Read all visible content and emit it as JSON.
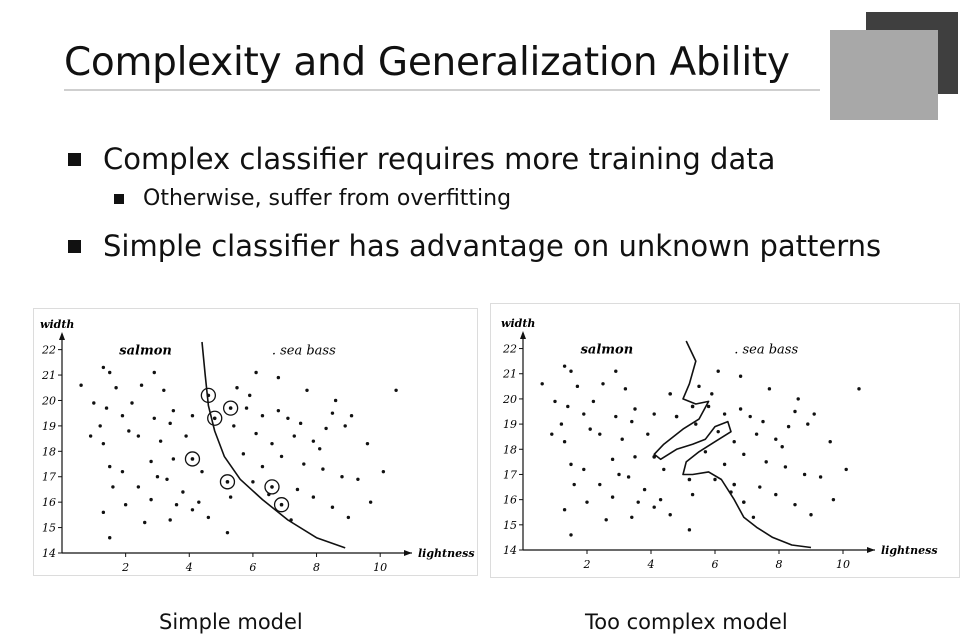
{
  "slide": {
    "title": "Complexity and Generalization Ability",
    "bullets": [
      {
        "text": "Complex classifier requires more training data",
        "sub": [
          "Otherwise, suffer from overfitting"
        ]
      },
      {
        "text": "Simple classifier has advantage on unknown patterns"
      }
    ]
  },
  "chart_data": [
    {
      "type": "scatter",
      "caption": "Simple model",
      "xlabel": "lightness",
      "ylabel": "width",
      "xlim": [
        0,
        11
      ],
      "ylim": [
        14,
        22.3
      ],
      "xticks": [
        2,
        4,
        6,
        8,
        10
      ],
      "yticks": [
        14,
        15,
        16,
        17,
        18,
        19,
        20,
        21,
        22
      ],
      "series": [
        {
          "name": "salmon",
          "points": [
            [
              0.6,
              20.6
            ],
            [
              1.0,
              19.9
            ],
            [
              1.3,
              21.3
            ],
            [
              1.5,
              21.1
            ],
            [
              1.7,
              20.5
            ],
            [
              1.4,
              19.7
            ],
            [
              1.9,
              19.4
            ],
            [
              2.2,
              19.9
            ],
            [
              2.5,
              20.6
            ],
            [
              2.9,
              21.1
            ],
            [
              3.2,
              20.4
            ],
            [
              3.5,
              19.6
            ],
            [
              2.1,
              18.8
            ],
            [
              1.3,
              18.3
            ],
            [
              1.5,
              17.4
            ],
            [
              0.9,
              18.6
            ],
            [
              1.9,
              17.2
            ],
            [
              2.4,
              18.6
            ],
            [
              2.8,
              17.6
            ],
            [
              3.1,
              18.4
            ],
            [
              3.5,
              17.7
            ],
            [
              3.9,
              18.6
            ],
            [
              4.1,
              19.4
            ],
            [
              3.4,
              19.1
            ],
            [
              2.9,
              19.3
            ],
            [
              1.6,
              16.6
            ],
            [
              2.4,
              16.6
            ],
            [
              2.8,
              16.1
            ],
            [
              3.3,
              16.9
            ],
            [
              3.8,
              16.4
            ],
            [
              1.3,
              15.6
            ],
            [
              2.6,
              15.2
            ],
            [
              3.4,
              15.3
            ],
            [
              4.1,
              15.7
            ],
            [
              2.0,
              15.9
            ],
            [
              1.5,
              14.6
            ],
            [
              4.4,
              17.2
            ],
            [
              3.0,
              17.0
            ],
            [
              3.6,
              15.9
            ],
            [
              4.3,
              16.0
            ],
            [
              4.6,
              15.4
            ],
            [
              5.2,
              14.8
            ],
            [
              1.2,
              19.0
            ]
          ]
        },
        {
          "name": "sea bass",
          "points": [
            [
              5.5,
              20.5
            ],
            [
              5.9,
              20.2
            ],
            [
              6.3,
              19.4
            ],
            [
              6.8,
              19.6
            ],
            [
              7.1,
              19.3
            ],
            [
              7.5,
              19.1
            ],
            [
              7.3,
              18.6
            ],
            [
              7.9,
              18.4
            ],
            [
              8.3,
              18.9
            ],
            [
              8.1,
              18.1
            ],
            [
              8.5,
              19.5
            ],
            [
              8.9,
              19.0
            ],
            [
              9.1,
              19.4
            ],
            [
              6.1,
              18.7
            ],
            [
              6.6,
              18.3
            ],
            [
              6.9,
              17.8
            ],
            [
              7.6,
              17.5
            ],
            [
              8.2,
              17.3
            ],
            [
              8.8,
              17.0
            ],
            [
              9.3,
              16.9
            ],
            [
              6.0,
              16.8
            ],
            [
              6.5,
              16.3
            ],
            [
              7.4,
              16.5
            ],
            [
              7.9,
              16.2
            ],
            [
              8.5,
              15.8
            ],
            [
              9.0,
              15.4
            ],
            [
              9.7,
              16.0
            ],
            [
              7.2,
              15.3
            ],
            [
              6.3,
              17.4
            ],
            [
              5.7,
              17.9
            ],
            [
              5.4,
              19.0
            ],
            [
              5.8,
              19.7
            ],
            [
              7.7,
              20.4
            ],
            [
              8.6,
              20.0
            ],
            [
              9.6,
              18.3
            ],
            [
              10.1,
              17.2
            ],
            [
              6.1,
              21.1
            ],
            [
              10.5,
              20.4
            ],
            [
              5.3,
              16.2
            ],
            [
              6.8,
              20.9
            ]
          ]
        }
      ],
      "annotations": [
        "salmon",
        "sea bass"
      ]
    },
    {
      "type": "scatter",
      "caption": "Too complex model",
      "xlabel": "lightness",
      "ylabel": "width",
      "xlim": [
        0,
        11
      ],
      "ylim": [
        14,
        22.3
      ],
      "xticks": [
        2,
        4,
        6,
        8,
        10
      ],
      "yticks": [
        14,
        15,
        16,
        17,
        18,
        19,
        20,
        21,
        22
      ],
      "series": [
        {
          "name": "salmon",
          "points": [
            [
              0.6,
              20.6
            ],
            [
              1.0,
              19.9
            ],
            [
              1.3,
              21.3
            ],
            [
              1.5,
              21.1
            ],
            [
              1.7,
              20.5
            ],
            [
              1.4,
              19.7
            ],
            [
              1.9,
              19.4
            ],
            [
              2.2,
              19.9
            ],
            [
              2.5,
              20.6
            ],
            [
              2.9,
              21.1
            ],
            [
              3.2,
              20.4
            ],
            [
              3.5,
              19.6
            ],
            [
              2.1,
              18.8
            ],
            [
              1.3,
              18.3
            ],
            [
              1.5,
              17.4
            ],
            [
              0.9,
              18.6
            ],
            [
              1.9,
              17.2
            ],
            [
              2.4,
              18.6
            ],
            [
              2.8,
              17.6
            ],
            [
              3.1,
              18.4
            ],
            [
              3.5,
              17.7
            ],
            [
              3.9,
              18.6
            ],
            [
              4.1,
              19.4
            ],
            [
              3.4,
              19.1
            ],
            [
              2.9,
              19.3
            ],
            [
              1.6,
              16.6
            ],
            [
              2.4,
              16.6
            ],
            [
              2.8,
              16.1
            ],
            [
              3.3,
              16.9
            ],
            [
              3.8,
              16.4
            ],
            [
              1.3,
              15.6
            ],
            [
              2.6,
              15.2
            ],
            [
              3.4,
              15.3
            ],
            [
              4.1,
              15.7
            ],
            [
              2.0,
              15.9
            ],
            [
              1.5,
              14.6
            ],
            [
              4.4,
              17.2
            ],
            [
              3.0,
              17.0
            ],
            [
              3.6,
              15.9
            ],
            [
              4.3,
              16.0
            ],
            [
              4.6,
              15.4
            ],
            [
              5.2,
              14.8
            ],
            [
              1.2,
              19.0
            ]
          ]
        },
        {
          "name": "sea bass",
          "points": [
            [
              5.5,
              20.5
            ],
            [
              5.9,
              20.2
            ],
            [
              6.3,
              19.4
            ],
            [
              6.8,
              19.6
            ],
            [
              7.1,
              19.3
            ],
            [
              7.5,
              19.1
            ],
            [
              7.3,
              18.6
            ],
            [
              7.9,
              18.4
            ],
            [
              8.3,
              18.9
            ],
            [
              8.1,
              18.1
            ],
            [
              8.5,
              19.5
            ],
            [
              8.9,
              19.0
            ],
            [
              9.1,
              19.4
            ],
            [
              6.1,
              18.7
            ],
            [
              6.6,
              18.3
            ],
            [
              6.9,
              17.8
            ],
            [
              7.6,
              17.5
            ],
            [
              8.2,
              17.3
            ],
            [
              8.8,
              17.0
            ],
            [
              9.3,
              16.9
            ],
            [
              6.0,
              16.8
            ],
            [
              6.5,
              16.3
            ],
            [
              7.4,
              16.5
            ],
            [
              7.9,
              16.2
            ],
            [
              8.5,
              15.8
            ],
            [
              9.0,
              15.4
            ],
            [
              9.7,
              16.0
            ],
            [
              7.2,
              15.3
            ],
            [
              6.3,
              17.4
            ],
            [
              5.7,
              17.9
            ],
            [
              5.4,
              19.0
            ],
            [
              5.8,
              19.7
            ],
            [
              7.7,
              20.4
            ],
            [
              8.6,
              20.0
            ],
            [
              9.6,
              18.3
            ],
            [
              10.1,
              17.2
            ],
            [
              6.1,
              21.1
            ],
            [
              10.5,
              20.4
            ],
            [
              5.3,
              16.2
            ],
            [
              6.8,
              20.9
            ]
          ]
        }
      ],
      "annotations": [
        "salmon",
        "sea bass"
      ]
    }
  ]
}
